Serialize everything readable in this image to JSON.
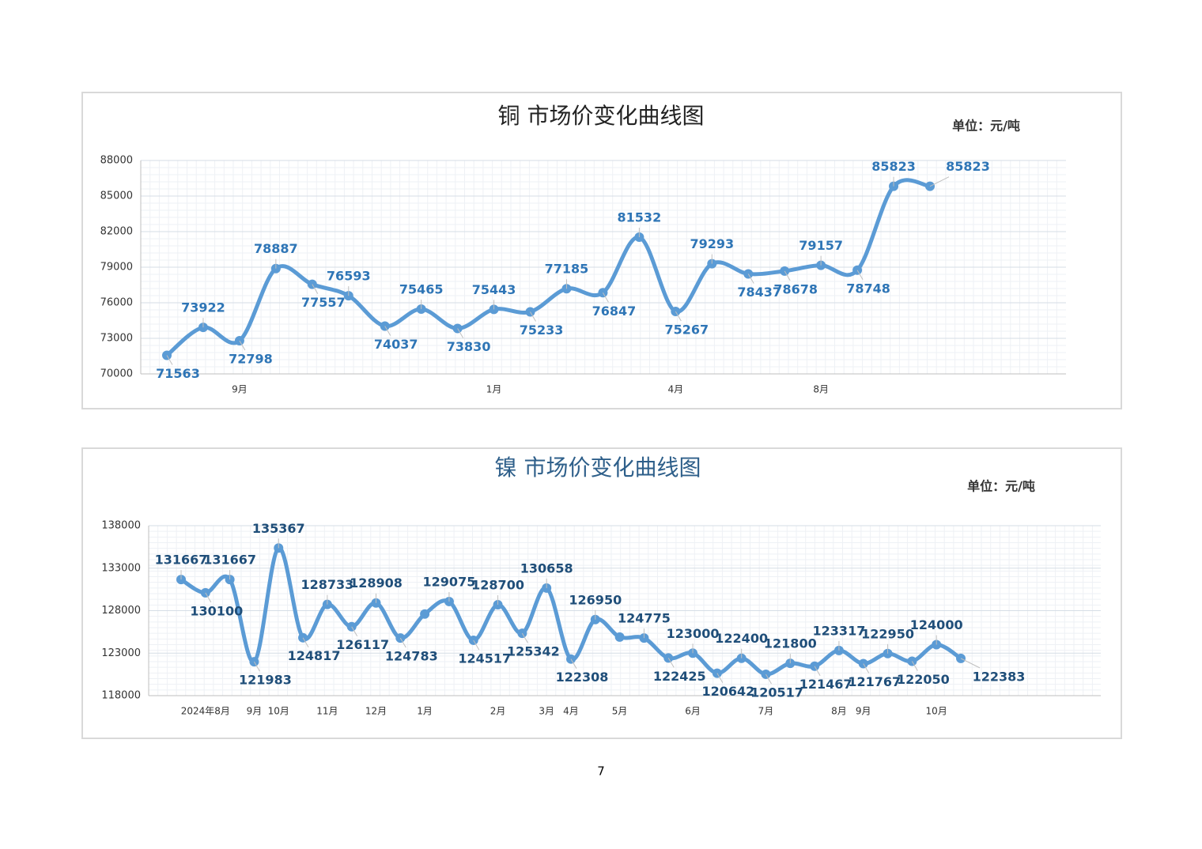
{
  "chart_data": [
    {
      "type": "line",
      "title": "铜  市场价变化曲线图",
      "unit_label": "单位：元/吨",
      "title_color": "#222222",
      "label_color": "#2e75b6",
      "categories": [
        null,
        null,
        "9月",
        null,
        null,
        null,
        null,
        null,
        null,
        "1月",
        null,
        null,
        null,
        null,
        "4月",
        null,
        null,
        null,
        "8月",
        null,
        null,
        null
      ],
      "series": [
        {
          "name": "铜",
          "color": "#5b9bd5",
          "values": [
            71563,
            73922,
            72798,
            78887,
            77557,
            76593,
            74037,
            75465,
            73830,
            75443,
            75233,
            77185,
            76847,
            81532,
            75267,
            79293,
            78437,
            78678,
            79157,
            78748,
            85823,
            85823
          ]
        }
      ],
      "ylim": [
        70000,
        88000
      ],
      "yticks": [
        70000,
        73000,
        76000,
        79000,
        82000,
        85000,
        88000
      ],
      "grid": true
    },
    {
      "type": "line",
      "title": "镍  市场价变化曲线图",
      "unit_label": "单位：元/吨",
      "title_color": "#2e5f8a",
      "label_color": "#1f4e79",
      "categories": [
        null,
        "2024年8月",
        null,
        "9月",
        "10月",
        null,
        "11月",
        null,
        "12月",
        null,
        "1月",
        null,
        null,
        "2月",
        null,
        "3月",
        "4月",
        null,
        "5月",
        null,
        null,
        "6月",
        null,
        null,
        "7月",
        null,
        null,
        "8月",
        "9月",
        null,
        null,
        "10月",
        null
      ],
      "series": [
        {
          "name": "镍",
          "color": "#5b9bd5",
          "values": [
            131667,
            130100,
            131667,
            121983,
            135367,
            124817,
            128733,
            126117,
            128908,
            124783,
            127600,
            129075,
            124517,
            128700,
            125342,
            130658,
            122308,
            126950,
            124900,
            124775,
            122425,
            123000,
            120642,
            122400,
            120517,
            121800,
            121467,
            123317,
            121767,
            122950,
            122050,
            124000,
            122383
          ],
          "value_labels": [
            "131667",
            "130100",
            "131667",
            "121983",
            "135367",
            "124817",
            "128733",
            "126117",
            "128908",
            "124783",
            null,
            "129075",
            "124517",
            "128700",
            "125342",
            "130658",
            "122308",
            "126950",
            null,
            "124775",
            "122425",
            "123000",
            "120642",
            "122400",
            "120517",
            "121800",
            "121467",
            "123317",
            "121767",
            "122950",
            "122050",
            "124000",
            "122383"
          ]
        }
      ],
      "ylim": [
        118000,
        138000
      ],
      "yticks": [
        118000,
        123000,
        128000,
        133000,
        138000
      ],
      "grid": true
    }
  ],
  "page_number": "7"
}
